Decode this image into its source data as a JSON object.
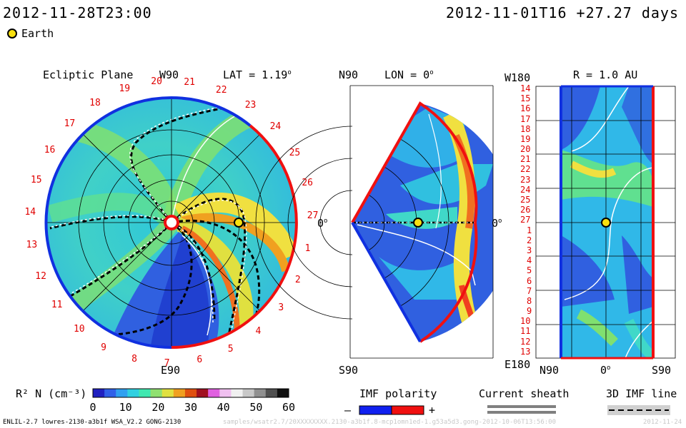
{
  "header": {
    "current_time": "2012-11-28T23:00",
    "ref_time": "2012-11-01T16 +27.27 days",
    "earth_legend": "Earth"
  },
  "panel_ecliptic": {
    "title": "Ecliptic Plane",
    "top_label": "W90",
    "bottom_label": "E90",
    "right_label": "0",
    "lat_label": "LAT = 1.19",
    "lat_sup": "o",
    "ticks": [
      "20",
      "21",
      "22",
      "23",
      "24",
      "25",
      "26",
      "27",
      "1",
      "2",
      "3",
      "4",
      "5",
      "6",
      "7",
      "8",
      "9",
      "10",
      "11",
      "12",
      "13",
      "14",
      "15",
      "16",
      "17",
      "18",
      "19"
    ]
  },
  "panel_meridional": {
    "top_label": "N90",
    "bottom_label": "S90",
    "lon_label": "LON = 0",
    "lon_sup": "o",
    "right_label": "0",
    "right_sup": "o"
  },
  "panel_radial": {
    "title": "R = 1.0 AU",
    "top_left": "W180",
    "bottom_left": "E180",
    "x_left": "N90",
    "x_mid": "0",
    "x_mid_sup": "o",
    "x_right": "S90",
    "rows": [
      "14",
      "15",
      "16",
      "17",
      "18",
      "19",
      "20",
      "21",
      "22",
      "23",
      "24",
      "25",
      "26",
      "27",
      "1",
      "2",
      "3",
      "4",
      "5",
      "6",
      "7",
      "8",
      "9",
      "10",
      "11",
      "12",
      "13"
    ]
  },
  "colorbar": {
    "label": "R² N (cm⁻³)",
    "ticks": [
      "0",
      "10",
      "20",
      "30",
      "40",
      "50",
      "60"
    ],
    "colors": [
      "#2020c0",
      "#3060e8",
      "#30a0f0",
      "#30d0e0",
      "#40e8b0",
      "#90e070",
      "#e0e040",
      "#f0a020",
      "#e05010",
      "#a01020",
      "#e060e0",
      "#f0c0f0",
      "#f0f0f0",
      "#c8c8c8",
      "#909090",
      "#505050",
      "#101010"
    ]
  },
  "legends": {
    "imf_polarity": "IMF polarity",
    "minus": "–",
    "plus": "+",
    "current_sheath": "Current sheath",
    "imf_line": "3D IMF line"
  },
  "footer": {
    "model": "ENLIL-2.7 lowres-2130-a3b1f WSA_V2.2 GONG-2130",
    "path": "samples/wsatr2.7/20XXXXXXXX.2130-a3b1f.8-mcp1omn1ed-1.g53a5d3.gong-2012-10-06T13:56:00",
    "date": "2012-11-24"
  }
}
